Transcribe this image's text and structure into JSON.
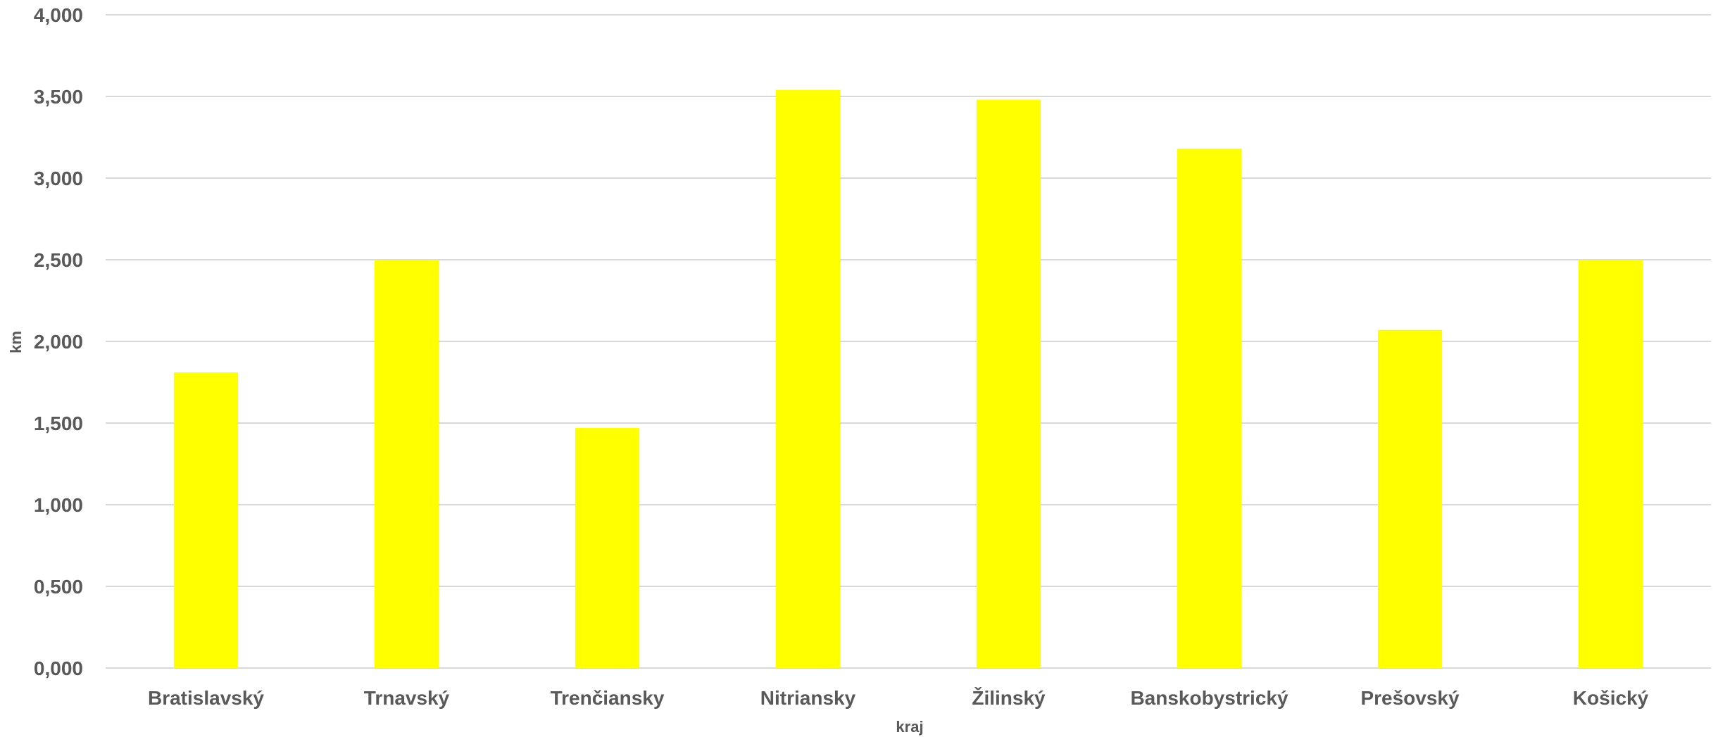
{
  "chart_data": {
    "type": "bar",
    "title": "",
    "xlabel": "kraj",
    "ylabel": "km",
    "categories": [
      "Bratislavský",
      "Trnavský",
      "Trenčiansky",
      "Nitriansky",
      "Žilinský",
      "Banskobystrický",
      "Prešovský",
      "Košický"
    ],
    "series": [
      {
        "values": [
          1.81,
          2.5,
          1.47,
          3.54,
          3.48,
          3.18,
          2.07,
          2.5
        ],
        "color": "#FFFF00"
      }
    ],
    "ylim": [
      0,
      4
    ],
    "yticks": [
      0,
      0.5,
      1,
      1.5,
      2,
      2.5,
      3,
      3.5,
      4
    ],
    "ytick_labels": [
      "0,000",
      "0,500",
      "1,000",
      "1,500",
      "2,000",
      "2,500",
      "3,000",
      "3,500",
      "4,000"
    ],
    "grid": true,
    "legend": "none",
    "colors": {
      "bar": "#FFFF00",
      "grid": "#D9D9D9",
      "text": "#595959"
    }
  }
}
